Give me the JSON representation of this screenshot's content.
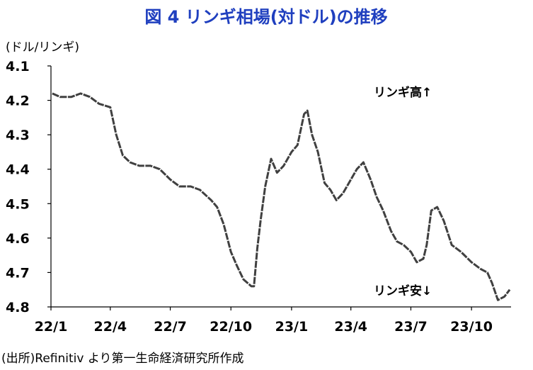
{
  "chart_data": {
    "type": "line",
    "title": "図 4  リンギ相場(対ドル)の推移",
    "unit_label": "(ドル/リンギ)",
    "y_reversed": true,
    "ylim": [
      4.1,
      4.8
    ],
    "yticks": [
      "4.1",
      "4.2",
      "4.3",
      "4.4",
      "4.5",
      "4.6",
      "4.7",
      "4.8"
    ],
    "ytick_values": [
      4.1,
      4.2,
      4.3,
      4.4,
      4.5,
      4.6,
      4.7,
      4.8
    ],
    "xlim": [
      "2022-01-01",
      "2023-11-30"
    ],
    "xticks": [
      "22/1",
      "22/4",
      "22/7",
      "22/10",
      "23/1",
      "23/4",
      "23/7",
      "23/10"
    ],
    "xtick_dates": [
      "2022-01-01",
      "2022-04-01",
      "2022-07-01",
      "2022-10-01",
      "2023-01-01",
      "2023-04-01",
      "2023-07-01",
      "2023-10-01"
    ],
    "annotations": [
      {
        "text": "リンギ高↑",
        "position": "upper-right"
      },
      {
        "text": "リンギ安↓",
        "position": "lower-right"
      }
    ],
    "grid": false,
    "legend": "none",
    "source": "(出所)Refinitiv より第一生命経済研究所作成",
    "colors": {
      "title": "#1f3fbf",
      "line": "#404040",
      "text": "#000000"
    },
    "series": [
      {
        "x": [
          "2022-01-03",
          "2022-01-15",
          "2022-02-01",
          "2022-02-15",
          "2022-03-01",
          "2022-03-15",
          "2022-04-01",
          "2022-04-10",
          "2022-04-20",
          "2022-05-01",
          "2022-05-15",
          "2022-06-01",
          "2022-06-15",
          "2022-07-01",
          "2022-07-15",
          "2022-08-01",
          "2022-08-15",
          "2022-09-01",
          "2022-09-10",
          "2022-09-20",
          "2022-10-01",
          "2022-10-10",
          "2022-10-20",
          "2022-11-01",
          "2022-11-05",
          "2022-11-10",
          "2022-11-15",
          "2022-11-22",
          "2022-12-01",
          "2022-12-10",
          "2022-12-20",
          "2023-01-01",
          "2023-01-10",
          "2023-01-20",
          "2023-01-25",
          "2023-02-01",
          "2023-02-10",
          "2023-02-20",
          "2023-03-01",
          "2023-03-10",
          "2023-03-20",
          "2023-04-01",
          "2023-04-10",
          "2023-04-20",
          "2023-05-01",
          "2023-05-10",
          "2023-05-20",
          "2023-06-01",
          "2023-06-10",
          "2023-06-20",
          "2023-07-01",
          "2023-07-10",
          "2023-07-20",
          "2023-07-25",
          "2023-08-01",
          "2023-08-10",
          "2023-08-20",
          "2023-09-01",
          "2023-09-15",
          "2023-10-01",
          "2023-10-15",
          "2023-10-25",
          "2023-11-01",
          "2023-11-10",
          "2023-11-20",
          "2023-11-28"
        ],
        "values": [
          4.18,
          4.19,
          4.19,
          4.18,
          4.19,
          4.21,
          4.22,
          4.3,
          4.36,
          4.38,
          4.39,
          4.39,
          4.4,
          4.43,
          4.45,
          4.45,
          4.46,
          4.49,
          4.51,
          4.56,
          4.64,
          4.68,
          4.72,
          4.74,
          4.74,
          4.63,
          4.55,
          4.45,
          4.37,
          4.41,
          4.39,
          4.35,
          4.33,
          4.24,
          4.23,
          4.3,
          4.35,
          4.44,
          4.46,
          4.49,
          4.47,
          4.43,
          4.4,
          4.38,
          4.43,
          4.48,
          4.52,
          4.58,
          4.61,
          4.62,
          4.64,
          4.67,
          4.66,
          4.62,
          4.52,
          4.51,
          4.55,
          4.62,
          4.64,
          4.67,
          4.69,
          4.7,
          4.73,
          4.78,
          4.77,
          4.75
        ]
      }
    ]
  }
}
